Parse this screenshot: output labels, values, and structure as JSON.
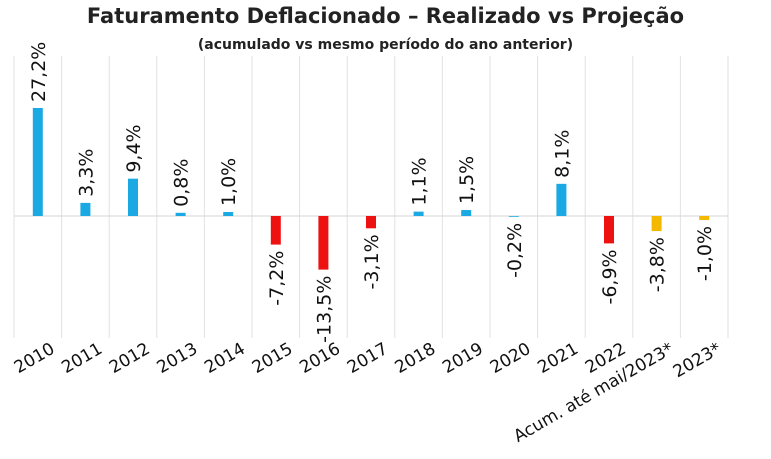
{
  "chart_data": {
    "type": "bar",
    "title": "Faturamento Deflacionado – Realizado vs Projeção",
    "subtitle": "(acumulado vs mesmo período do ano anterior)",
    "categories": [
      "2010",
      "2011",
      "2012",
      "2013",
      "2014",
      "2015",
      "2016",
      "2017",
      "2018",
      "2019",
      "2020",
      "2021",
      "2022",
      "Acum. até mai/2023*",
      "2023*"
    ],
    "values": [
      27.2,
      3.3,
      9.4,
      0.8,
      1.0,
      -7.2,
      -13.5,
      -3.1,
      1.1,
      1.5,
      -0.2,
      8.1,
      -6.9,
      -3.8,
      -1.0
    ],
    "value_labels": [
      "27,2%",
      "3,3%",
      "9,4%",
      "0,8%",
      "1,0%",
      "-7,2%",
      "-13,5%",
      "-3,1%",
      "1,1%",
      "1,5%",
      "-0,2%",
      "8,1%",
      "-6,9%",
      "-3,8%",
      "-1,0%"
    ],
    "bar_colors": [
      "#1aa9e3",
      "#1aa9e3",
      "#1aa9e3",
      "#1aa9e3",
      "#1aa9e3",
      "#ee1111",
      "#ee1111",
      "#ee1111",
      "#1aa9e3",
      "#1aa9e3",
      "#1aa9e3",
      "#1aa9e3",
      "#ee1111",
      "#f5b800",
      "#f5b800"
    ],
    "ylim": [
      -30,
      27.2
    ],
    "grid": "vertical",
    "legend": "none"
  }
}
